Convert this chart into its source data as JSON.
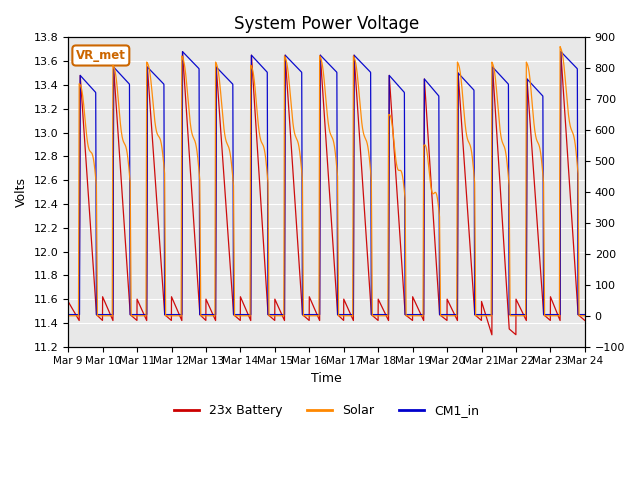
{
  "title": "System Power Voltage",
  "xlabel": "Time",
  "ylabel_left": "Volts",
  "ylim_left": [
    11.2,
    13.8
  ],
  "ylim_right": [
    -100,
    900
  ],
  "yticks_left": [
    11.2,
    11.4,
    11.6,
    11.8,
    12.0,
    12.2,
    12.4,
    12.6,
    12.8,
    13.0,
    13.2,
    13.4,
    13.6,
    13.8
  ],
  "yticks_right": [
    -100,
    0,
    100,
    200,
    300,
    400,
    500,
    600,
    700,
    800,
    900
  ],
  "xtick_labels": [
    "Mar 9",
    "Mar 10",
    "Mar 11",
    "Mar 12",
    "Mar 13",
    "Mar 14",
    "Mar 15",
    "Mar 16",
    "Mar 17",
    "Mar 18",
    "Mar 19",
    "Mar 20",
    "Mar 21",
    "Mar 22",
    "Mar 23",
    "Mar 24"
  ],
  "num_days": 16,
  "color_battery": "#cc0000",
  "color_solar": "#ff8800",
  "color_cm1": "#0000cc",
  "legend_labels": [
    "23x Battery",
    "Solar",
    "CM1_in"
  ],
  "annotation_text": "VR_met",
  "annotation_color": "#cc6600",
  "background_color": "#e8e8e8",
  "grid_color": "#ffffff",
  "title_fontsize": 12,
  "label_fontsize": 9,
  "tick_fontsize": 8
}
